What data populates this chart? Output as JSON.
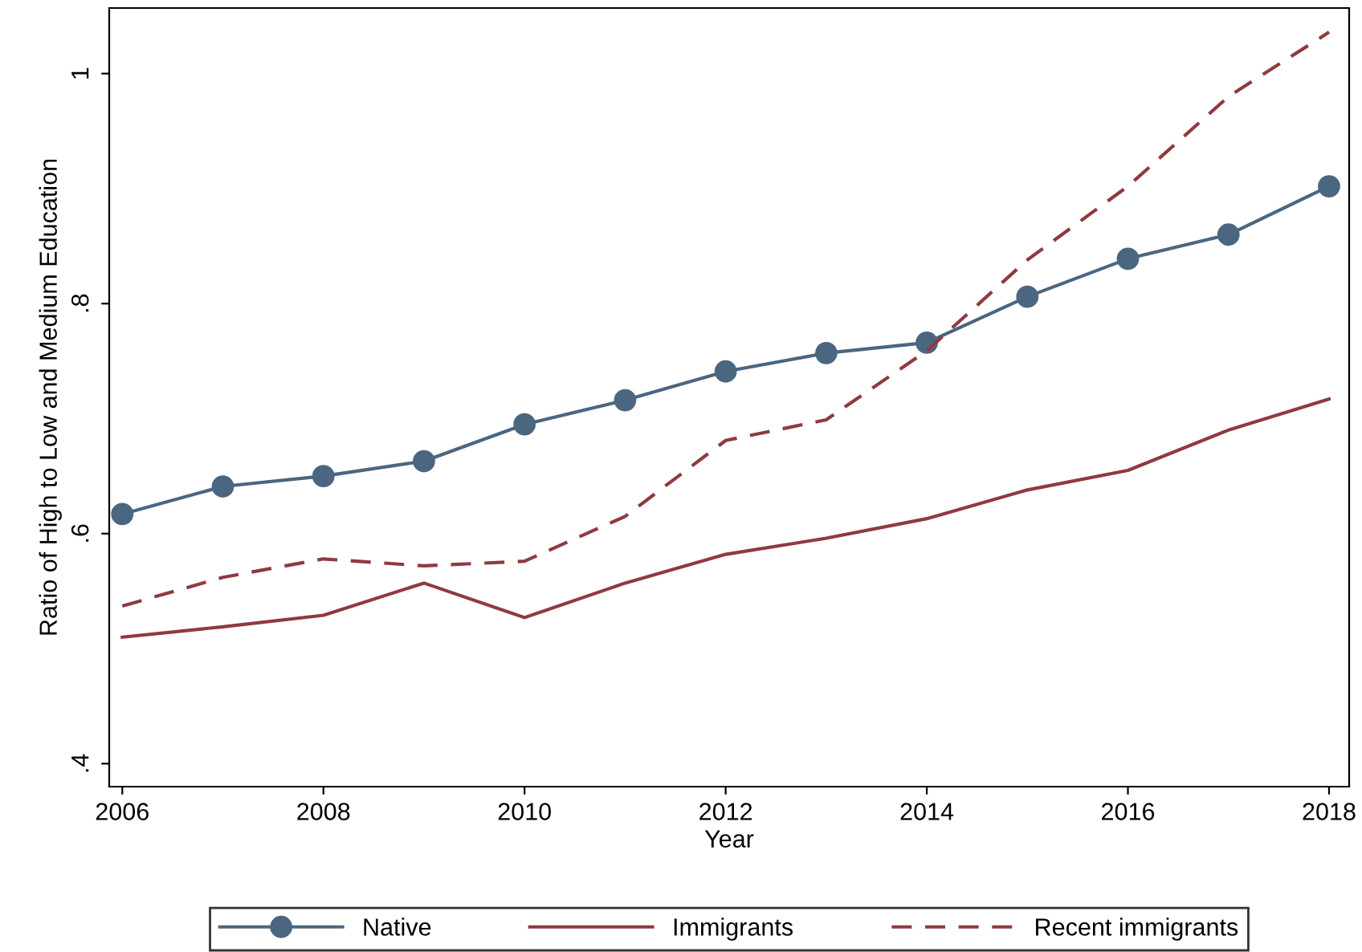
{
  "chart_data": {
    "type": "line",
    "xlabel": "Year",
    "ylabel": "Ratio of High to Low and Medium Education",
    "x": [
      2006,
      2007,
      2008,
      2009,
      2010,
      2011,
      2012,
      2013,
      2014,
      2015,
      2016,
      2017,
      2018
    ],
    "series": [
      {
        "name": "Native",
        "color": "#4b6680",
        "marker": "circle",
        "line_style": "solid",
        "values": [
          0.617,
          0.641,
          0.65,
          0.663,
          0.695,
          0.716,
          0.741,
          0.757,
          0.766,
          0.806,
          0.839,
          0.86,
          0.902
        ]
      },
      {
        "name": "Immigrants",
        "color": "#8f3a40",
        "marker": "none",
        "line_style": "solid",
        "values": [
          0.51,
          0.519,
          0.529,
          0.557,
          0.527,
          0.557,
          0.582,
          0.596,
          0.613,
          0.638,
          0.655,
          0.69,
          0.717
        ]
      },
      {
        "name": "Recent immigrants",
        "color": "#8f3a40",
        "marker": "none",
        "line_style": "dashed",
        "values": [
          0.537,
          0.562,
          0.578,
          0.572,
          0.576,
          0.615,
          0.681,
          0.699,
          0.759,
          0.838,
          0.902,
          0.98,
          1.036
        ]
      }
    ],
    "xlim": [
      2005.87,
      2018.2
    ],
    "xticks": [
      2006,
      2008,
      2010,
      2012,
      2014,
      2016,
      2018
    ],
    "ylim": [
      0.38,
      1.057
    ],
    "yticks": [
      {
        "value": 0.4,
        "label": ".4"
      },
      {
        "value": 0.6,
        "label": ".6"
      },
      {
        "value": 0.8,
        "label": ".8"
      },
      {
        "value": 1,
        "label": "1"
      }
    ],
    "grid": false,
    "legend": "bottom"
  }
}
